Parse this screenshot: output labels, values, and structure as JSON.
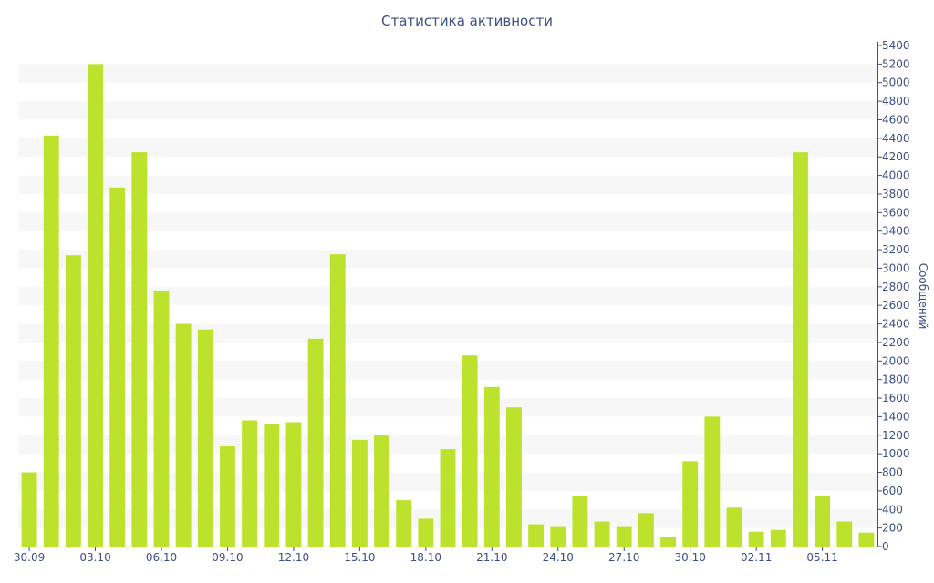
{
  "chart_data": {
    "type": "bar",
    "title": "Статистика активности",
    "ylabel": "Сообщений",
    "xlabel": "",
    "ylim": [
      0,
      5400
    ],
    "ytick_step": 200,
    "y_axis_side": "right",
    "grid": "alternating horizontal bands",
    "x_tick_labels": [
      "30.09",
      "03.10",
      "06.10",
      "09.10",
      "12.10",
      "15.10",
      "18.10",
      "21.10",
      "24.10",
      "27.10",
      "30.10",
      "02.11",
      "05.11"
    ],
    "x_tick_every": 3,
    "bar_color": "#bde22e",
    "values": [
      800,
      4430,
      3140,
      5200,
      3870,
      4250,
      2760,
      2400,
      2340,
      1080,
      1360,
      1320,
      1340,
      2240,
      3150,
      1150,
      1200,
      500,
      300,
      1050,
      2060,
      1720,
      1500,
      240,
      220,
      540,
      270,
      220,
      360,
      100,
      920,
      1400,
      420,
      160,
      180,
      4250,
      550,
      270,
      150
    ]
  }
}
